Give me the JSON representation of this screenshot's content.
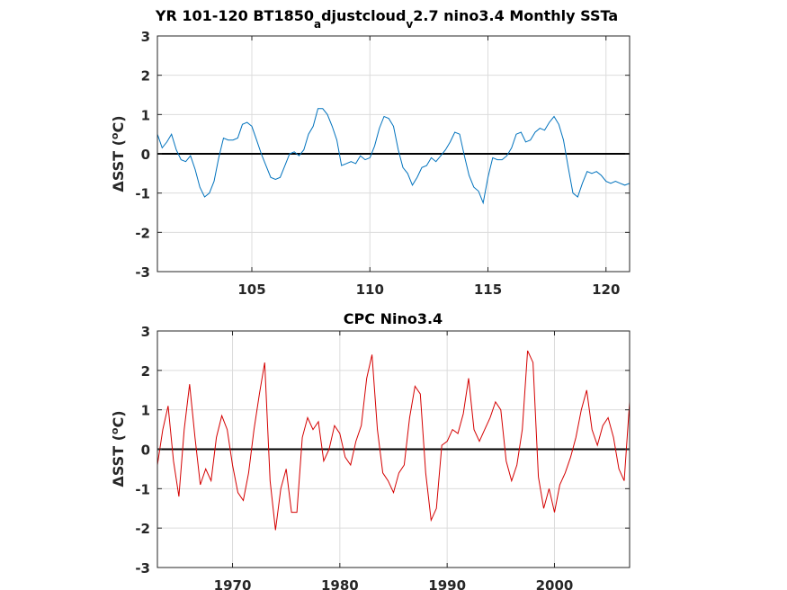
{
  "chart_data": [
    {
      "type": "line",
      "title": "YR 101-120 BT1850_adjustcloud_v2.7 nino3.4 Monthly SSTa",
      "title_parts": {
        "t1": "YR 101-120 BT1850",
        "t2": "a",
        "t3": "djustcloud",
        "t4": "v",
        "t5": "2.7 nino3.4 Monthly SSTa"
      },
      "ylabel": "ΔSST (°C)",
      "ylabel_parts": {
        "pre": "ΔSST (",
        "sup": "o",
        "post": "C)"
      },
      "xlim": [
        101,
        121
      ],
      "ylim": [
        -3,
        3
      ],
      "xticks": [
        105,
        110,
        115,
        120
      ],
      "yticks": [
        -3,
        -2,
        -1,
        0,
        1,
        2,
        3
      ],
      "grid": true,
      "reference_line": 0,
      "color": "#0072BD",
      "series": [
        {
          "x": [
            101.0,
            101.2,
            101.4,
            101.6,
            101.8,
            102.0,
            102.2,
            102.4,
            102.6,
            102.8,
            103.0,
            103.2,
            103.4,
            103.6,
            103.8,
            104.0,
            104.2,
            104.4,
            104.6,
            104.8,
            105.0,
            105.2,
            105.4,
            105.6,
            105.8,
            106.0,
            106.2,
            106.4,
            106.6,
            106.8,
            107.0,
            107.2,
            107.4,
            107.6,
            107.8,
            108.0,
            108.2,
            108.4,
            108.6,
            108.8,
            109.0,
            109.2,
            109.4,
            109.6,
            109.8,
            110.0,
            110.2,
            110.4,
            110.6,
            110.8,
            111.0,
            111.2,
            111.4,
            111.6,
            111.8,
            112.0,
            112.2,
            112.4,
            112.6,
            112.8,
            113.0,
            113.2,
            113.4,
            113.6,
            113.8,
            114.0,
            114.2,
            114.4,
            114.6,
            114.8,
            115.0,
            115.2,
            115.4,
            115.6,
            115.8,
            116.0,
            116.2,
            116.4,
            116.6,
            116.8,
            117.0,
            117.2,
            117.4,
            117.6,
            117.8,
            118.0,
            118.2,
            118.4,
            118.6,
            118.8,
            119.0,
            119.2,
            119.4,
            119.6,
            119.8,
            120.0,
            120.2,
            120.4,
            120.6,
            120.8,
            121.0
          ],
          "y": [
            0.5,
            0.15,
            0.3,
            0.5,
            0.1,
            -0.15,
            -0.2,
            -0.05,
            -0.4,
            -0.85,
            -1.1,
            -1.0,
            -0.7,
            -0.1,
            0.4,
            0.35,
            0.35,
            0.4,
            0.75,
            0.8,
            0.7,
            0.35,
            0.0,
            -0.3,
            -0.6,
            -0.65,
            -0.6,
            -0.3,
            0.0,
            0.05,
            -0.05,
            0.1,
            0.5,
            0.7,
            1.15,
            1.15,
            1.0,
            0.7,
            0.35,
            -0.3,
            -0.25,
            -0.2,
            -0.25,
            -0.05,
            -0.15,
            -0.1,
            0.2,
            0.65,
            0.95,
            0.9,
            0.7,
            0.1,
            -0.35,
            -0.5,
            -0.8,
            -0.6,
            -0.35,
            -0.3,
            -0.1,
            -0.2,
            -0.05,
            0.1,
            0.3,
            0.55,
            0.5,
            -0.05,
            -0.55,
            -0.85,
            -0.95,
            -1.25,
            -0.6,
            -0.1,
            -0.15,
            -0.15,
            -0.05,
            0.15,
            0.5,
            0.55,
            0.3,
            0.35,
            0.55,
            0.65,
            0.6,
            0.8,
            0.95,
            0.75,
            0.35,
            -0.35,
            -1.0,
            -1.1,
            -0.75,
            -0.45,
            -0.5,
            -0.45,
            -0.55,
            -0.7,
            -0.75,
            -0.7,
            -0.75,
            -0.8,
            -0.75
          ]
        }
      ]
    },
    {
      "type": "line",
      "title": "CPC Nino3.4",
      "ylabel": "ΔSST (°C)",
      "ylabel_parts": {
        "pre": "ΔSST (",
        "sup": "o",
        "post": "C)"
      },
      "xlim": [
        1963,
        2007
      ],
      "ylim": [
        -3,
        3
      ],
      "xticks": [
        1970,
        1980,
        1990,
        2000
      ],
      "yticks": [
        -3,
        -2,
        -1,
        0,
        1,
        2,
        3
      ],
      "grid": true,
      "reference_line": 0,
      "color": "#D40000",
      "series": [
        {
          "x": [
            1963.0,
            1963.5,
            1964.0,
            1964.5,
            1965.0,
            1965.5,
            1966.0,
            1966.5,
            1967.0,
            1967.5,
            1968.0,
            1968.5,
            1969.0,
            1969.5,
            1970.0,
            1970.5,
            1971.0,
            1971.5,
            1972.0,
            1972.5,
            1973.0,
            1973.5,
            1974.0,
            1974.5,
            1975.0,
            1975.5,
            1976.0,
            1976.5,
            1977.0,
            1977.5,
            1978.0,
            1978.5,
            1979.0,
            1979.5,
            1980.0,
            1980.5,
            1981.0,
            1981.5,
            1982.0,
            1982.5,
            1983.0,
            1983.5,
            1984.0,
            1984.5,
            1985.0,
            1985.5,
            1986.0,
            1986.5,
            1987.0,
            1987.5,
            1988.0,
            1988.5,
            1989.0,
            1989.5,
            1990.0,
            1990.5,
            1991.0,
            1991.5,
            1992.0,
            1992.5,
            1993.0,
            1993.5,
            1994.0,
            1994.5,
            1995.0,
            1995.5,
            1996.0,
            1996.5,
            1997.0,
            1997.5,
            1998.0,
            1998.5,
            1999.0,
            1999.5,
            2000.0,
            2000.5,
            2001.0,
            2001.5,
            2002.0,
            2002.5,
            2003.0,
            2003.5,
            2004.0,
            2004.5,
            2005.0,
            2005.5,
            2006.0,
            2006.5,
            2007.0
          ],
          "y": [
            -0.4,
            0.5,
            1.1,
            -0.3,
            -1.2,
            0.5,
            1.65,
            0.3,
            -0.9,
            -0.5,
            -0.8,
            0.3,
            0.85,
            0.5,
            -0.4,
            -1.1,
            -1.3,
            -0.6,
            0.5,
            1.4,
            2.2,
            -0.8,
            -2.05,
            -1.0,
            -0.5,
            -1.6,
            -1.6,
            0.3,
            0.8,
            0.5,
            0.7,
            -0.3,
            0.0,
            0.6,
            0.4,
            -0.2,
            -0.4,
            0.2,
            0.6,
            1.8,
            2.4,
            0.5,
            -0.6,
            -0.8,
            -1.1,
            -0.6,
            -0.4,
            0.8,
            1.6,
            1.4,
            -0.6,
            -1.8,
            -1.5,
            0.1,
            0.2,
            0.5,
            0.4,
            0.9,
            1.8,
            0.5,
            0.2,
            0.5,
            0.8,
            1.2,
            1.0,
            -0.3,
            -0.8,
            -0.4,
            0.5,
            2.5,
            2.2,
            -0.7,
            -1.5,
            -1.0,
            -1.6,
            -0.9,
            -0.6,
            -0.2,
            0.3,
            1.0,
            1.5,
            0.5,
            0.1,
            0.6,
            0.8,
            0.3,
            -0.5,
            -0.8,
            1.2
          ]
        }
      ]
    }
  ]
}
